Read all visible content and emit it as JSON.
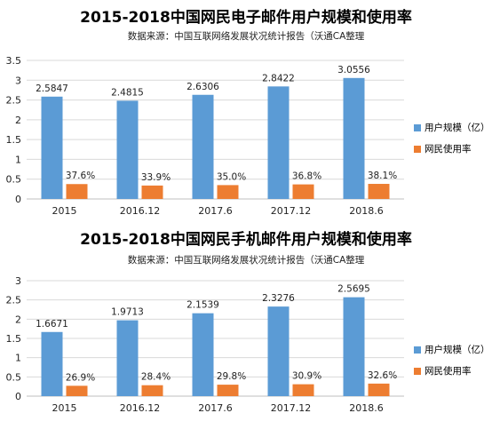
{
  "chart_data": [
    {
      "type": "bar",
      "title": "2015-2018中国网民电子邮件用户规模和使用率",
      "subtitle": "数据来源：中国互联网络发展状况统计报告（沃通CA整理",
      "categories": [
        "2015",
        "2016.12",
        "2017.6",
        "2017.12",
        "2018.6"
      ],
      "ylim": [
        0,
        3.5
      ],
      "yticks": [
        "0",
        "0.5",
        "1",
        "1.5",
        "2",
        "2.5",
        "3",
        "3.5"
      ],
      "grid": true,
      "legend_position": "right",
      "series": [
        {
          "name": "用户规模（亿）",
          "values": [
            2.5847,
            2.4815,
            2.6306,
            2.8422,
            3.0556
          ],
          "labels": [
            "2.5847",
            "2.4815",
            "2.6306",
            "2.8422",
            "3.0556"
          ],
          "color": "#5B9BD5"
        },
        {
          "name": "网民使用率",
          "values": [
            0.376,
            0.339,
            0.35,
            0.368,
            0.381
          ],
          "labels": [
            "37.6%",
            "33.9%",
            "35.0%",
            "36.8%",
            "38.1%"
          ],
          "color": "#ED7D31"
        }
      ]
    },
    {
      "type": "bar",
      "title": "2015-2018中国网民手机邮件用户规模和使用率",
      "subtitle": "数据来源：中国互联网络发展状况统计报告（沃通CA整理",
      "categories": [
        "2015",
        "2016.12",
        "2017.6",
        "2017.12",
        "2018.6"
      ],
      "ylim": [
        0,
        3
      ],
      "yticks": [
        "0",
        "0.5",
        "1",
        "1.5",
        "2",
        "2.5",
        "3"
      ],
      "grid": true,
      "legend_position": "right",
      "series": [
        {
          "name": "用户规模（亿）",
          "values": [
            1.6671,
            1.9713,
            2.1539,
            2.3276,
            2.5695
          ],
          "labels": [
            "1.6671",
            "1.9713",
            "2.1539",
            "2.3276",
            "2.5695"
          ],
          "color": "#5B9BD5"
        },
        {
          "name": "网民使用率",
          "values": [
            0.269,
            0.284,
            0.298,
            0.309,
            0.326
          ],
          "labels": [
            "26.9%",
            "28.4%",
            "29.8%",
            "30.9%",
            "32.6%"
          ],
          "color": "#ED7D31"
        }
      ]
    }
  ]
}
